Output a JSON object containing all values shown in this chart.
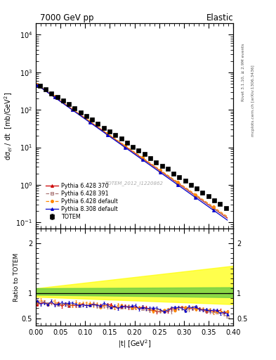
{
  "title_left": "7000 GeV pp",
  "title_right": "Elastic",
  "ylabel_main": "dσ$_{el}$ / dt  [mb/GeV$^2$]",
  "ylabel_ratio": "Ratio to TOTEM",
  "xlabel": "|t| [GeV$^2$]",
  "right_label_top": "Rivet 3.1.10, ≥ 2.9M events",
  "right_label_bottom": "mcplots.cern.ch [arXiv:1306.3436]",
  "watermark": "TOTEM_2012_I1220862",
  "xlim": [
    0.0,
    0.4
  ],
  "ylim_main": [
    0.07,
    20000
  ],
  "ylim_ratio": [
    0.35,
    2.3
  ],
  "legend_entries": [
    "TOTEM",
    "Pythia 6.428 370",
    "Pythia 6.428 391",
    "Pythia 6.428 default",
    "Pythia 8.308 default"
  ],
  "totem_color": "#000000",
  "pythia_colors": [
    "#cc0000",
    "#aa7777",
    "#ff8800",
    "#0000cc"
  ],
  "pythia_fill_colors": [
    "#cc0000",
    "none",
    "#ff8800",
    "#0000cc"
  ],
  "pythia_styles": [
    "-",
    "--",
    "--",
    "-"
  ],
  "pythia_markers": [
    "^",
    "s",
    "o",
    "^"
  ],
  "background_color": "#ffffff"
}
